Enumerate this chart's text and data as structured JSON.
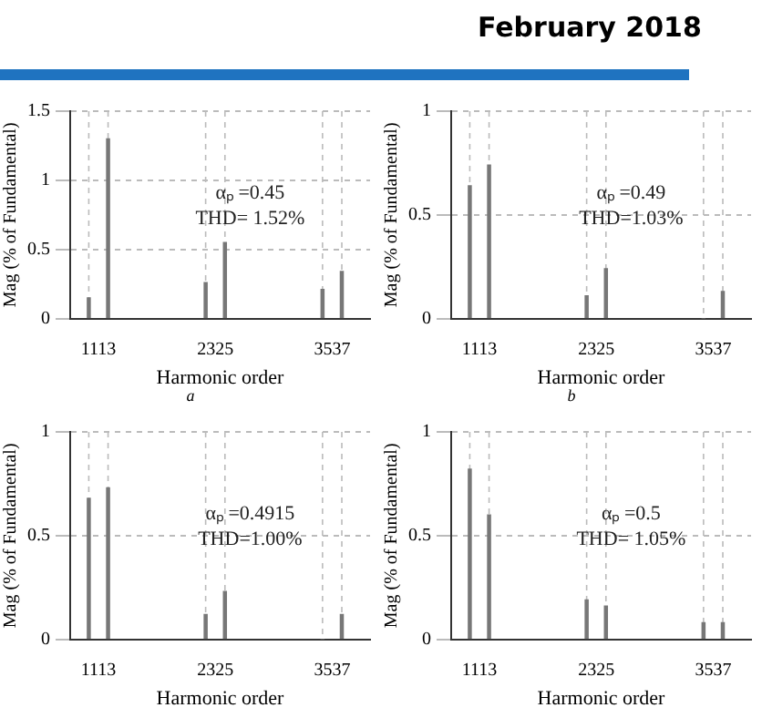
{
  "chart_data": [
    {
      "type": "bar",
      "xlabel": "Harmonic order",
      "ylabel": "Mag (% of Fundamental)",
      "x": [
        1013,
        1213,
        2225,
        2425,
        3437,
        3637
      ],
      "series": [
        {
          "color": "#777777",
          "values": [
            0.15,
            1.3,
            0.26,
            0.55,
            0.21,
            0.34
          ]
        }
      ],
      "xlim": [
        820,
        3930
      ],
      "xticks": [
        1113,
        2325,
        3537
      ],
      "ylim": [
        0,
        1.5
      ],
      "yticks": [
        0,
        0.5,
        1,
        1.5
      ],
      "grid": "y",
      "line_style": "dashed",
      "ref_lines": [
        {
          "axis": "x",
          "value": 1013
        },
        {
          "axis": "x",
          "value": 1213
        },
        {
          "axis": "x",
          "value": 2225
        },
        {
          "axis": "x",
          "value": 2425
        },
        {
          "axis": "x",
          "value": 3437
        },
        {
          "axis": "x",
          "value": 3637
        }
      ],
      "annotations": [
        "αₚ =0.45",
        "THD= 1.52%",
        "a"
      ]
    },
    {
      "type": "bar",
      "title": "February 2018",
      "xlabel": "Harmonic order",
      "ylabel": "Mag (% of Fundamental)",
      "x": [
        1013,
        1213,
        2225,
        2425,
        3437,
        3637
      ],
      "series": [
        {
          "color": "#777777",
          "values": [
            0.64,
            0.74,
            0.11,
            0.24,
            0,
            0.13
          ]
        }
      ],
      "xlim": [
        820,
        3930
      ],
      "xticks": [
        1113,
        2325,
        3537
      ],
      "ylim": [
        0,
        1
      ],
      "yticks": [
        0,
        0.5,
        1
      ],
      "grid": "y",
      "line_style": "dashed",
      "ref_lines": [
        {
          "axis": "x",
          "value": 1013
        },
        {
          "axis": "x",
          "value": 1213
        },
        {
          "axis": "x",
          "value": 2225
        },
        {
          "axis": "x",
          "value": 2425
        },
        {
          "axis": "x",
          "value": 3437
        },
        {
          "axis": "x",
          "value": 3637
        }
      ],
      "annotations": [
        "αₚ =0.49",
        "THD=1.03%",
        "b"
      ]
    },
    {
      "type": "bar",
      "xlabel": "Harmonic order",
      "ylabel": "Mag (% of Fundamental)",
      "x": [
        1013,
        1213,
        2225,
        2425,
        3437,
        3637
      ],
      "series": [
        {
          "color": "#777777",
          "values": [
            0.68,
            0.73,
            0.12,
            0.23,
            0,
            0.12
          ]
        }
      ],
      "xlim": [
        820,
        3930
      ],
      "xticks": [
        1113,
        2325,
        3537
      ],
      "ylim": [
        0,
        1
      ],
      "yticks": [
        0,
        0.5,
        1
      ],
      "grid": "y",
      "line_style": "dashed",
      "ref_lines": [
        {
          "axis": "x",
          "value": 1013
        },
        {
          "axis": "x",
          "value": 1213
        },
        {
          "axis": "x",
          "value": 2225
        },
        {
          "axis": "x",
          "value": 2425
        },
        {
          "axis": "x",
          "value": 3437
        },
        {
          "axis": "x",
          "value": 3637
        }
      ],
      "annotations": [
        "αₚ =0.4915",
        "THD=1.00%"
      ]
    },
    {
      "type": "bar",
      "xlabel": "Harmonic order",
      "ylabel": "Mag (% of Fundamental)",
      "x": [
        1013,
        1213,
        2225,
        2425,
        3437,
        3637
      ],
      "series": [
        {
          "color": "#777777",
          "values": [
            0.82,
            0.6,
            0.19,
            0.16,
            0.08,
            0.08
          ]
        }
      ],
      "xlim": [
        820,
        3930
      ],
      "xticks": [
        1113,
        2325,
        3537
      ],
      "ylim": [
        0,
        1
      ],
      "yticks": [
        0,
        0.5,
        1
      ],
      "grid": "y",
      "line_style": "dashed",
      "ref_lines": [
        {
          "axis": "x",
          "value": 1013
        },
        {
          "axis": "x",
          "value": 1213
        },
        {
          "axis": "x",
          "value": 2225
        },
        {
          "axis": "x",
          "value": 2425
        },
        {
          "axis": "x",
          "value": 3437
        },
        {
          "axis": "x",
          "value": 3637
        }
      ],
      "annotations": [
        "αₚ =0.5",
        "THD= 1.05%"
      ]
    }
  ]
}
